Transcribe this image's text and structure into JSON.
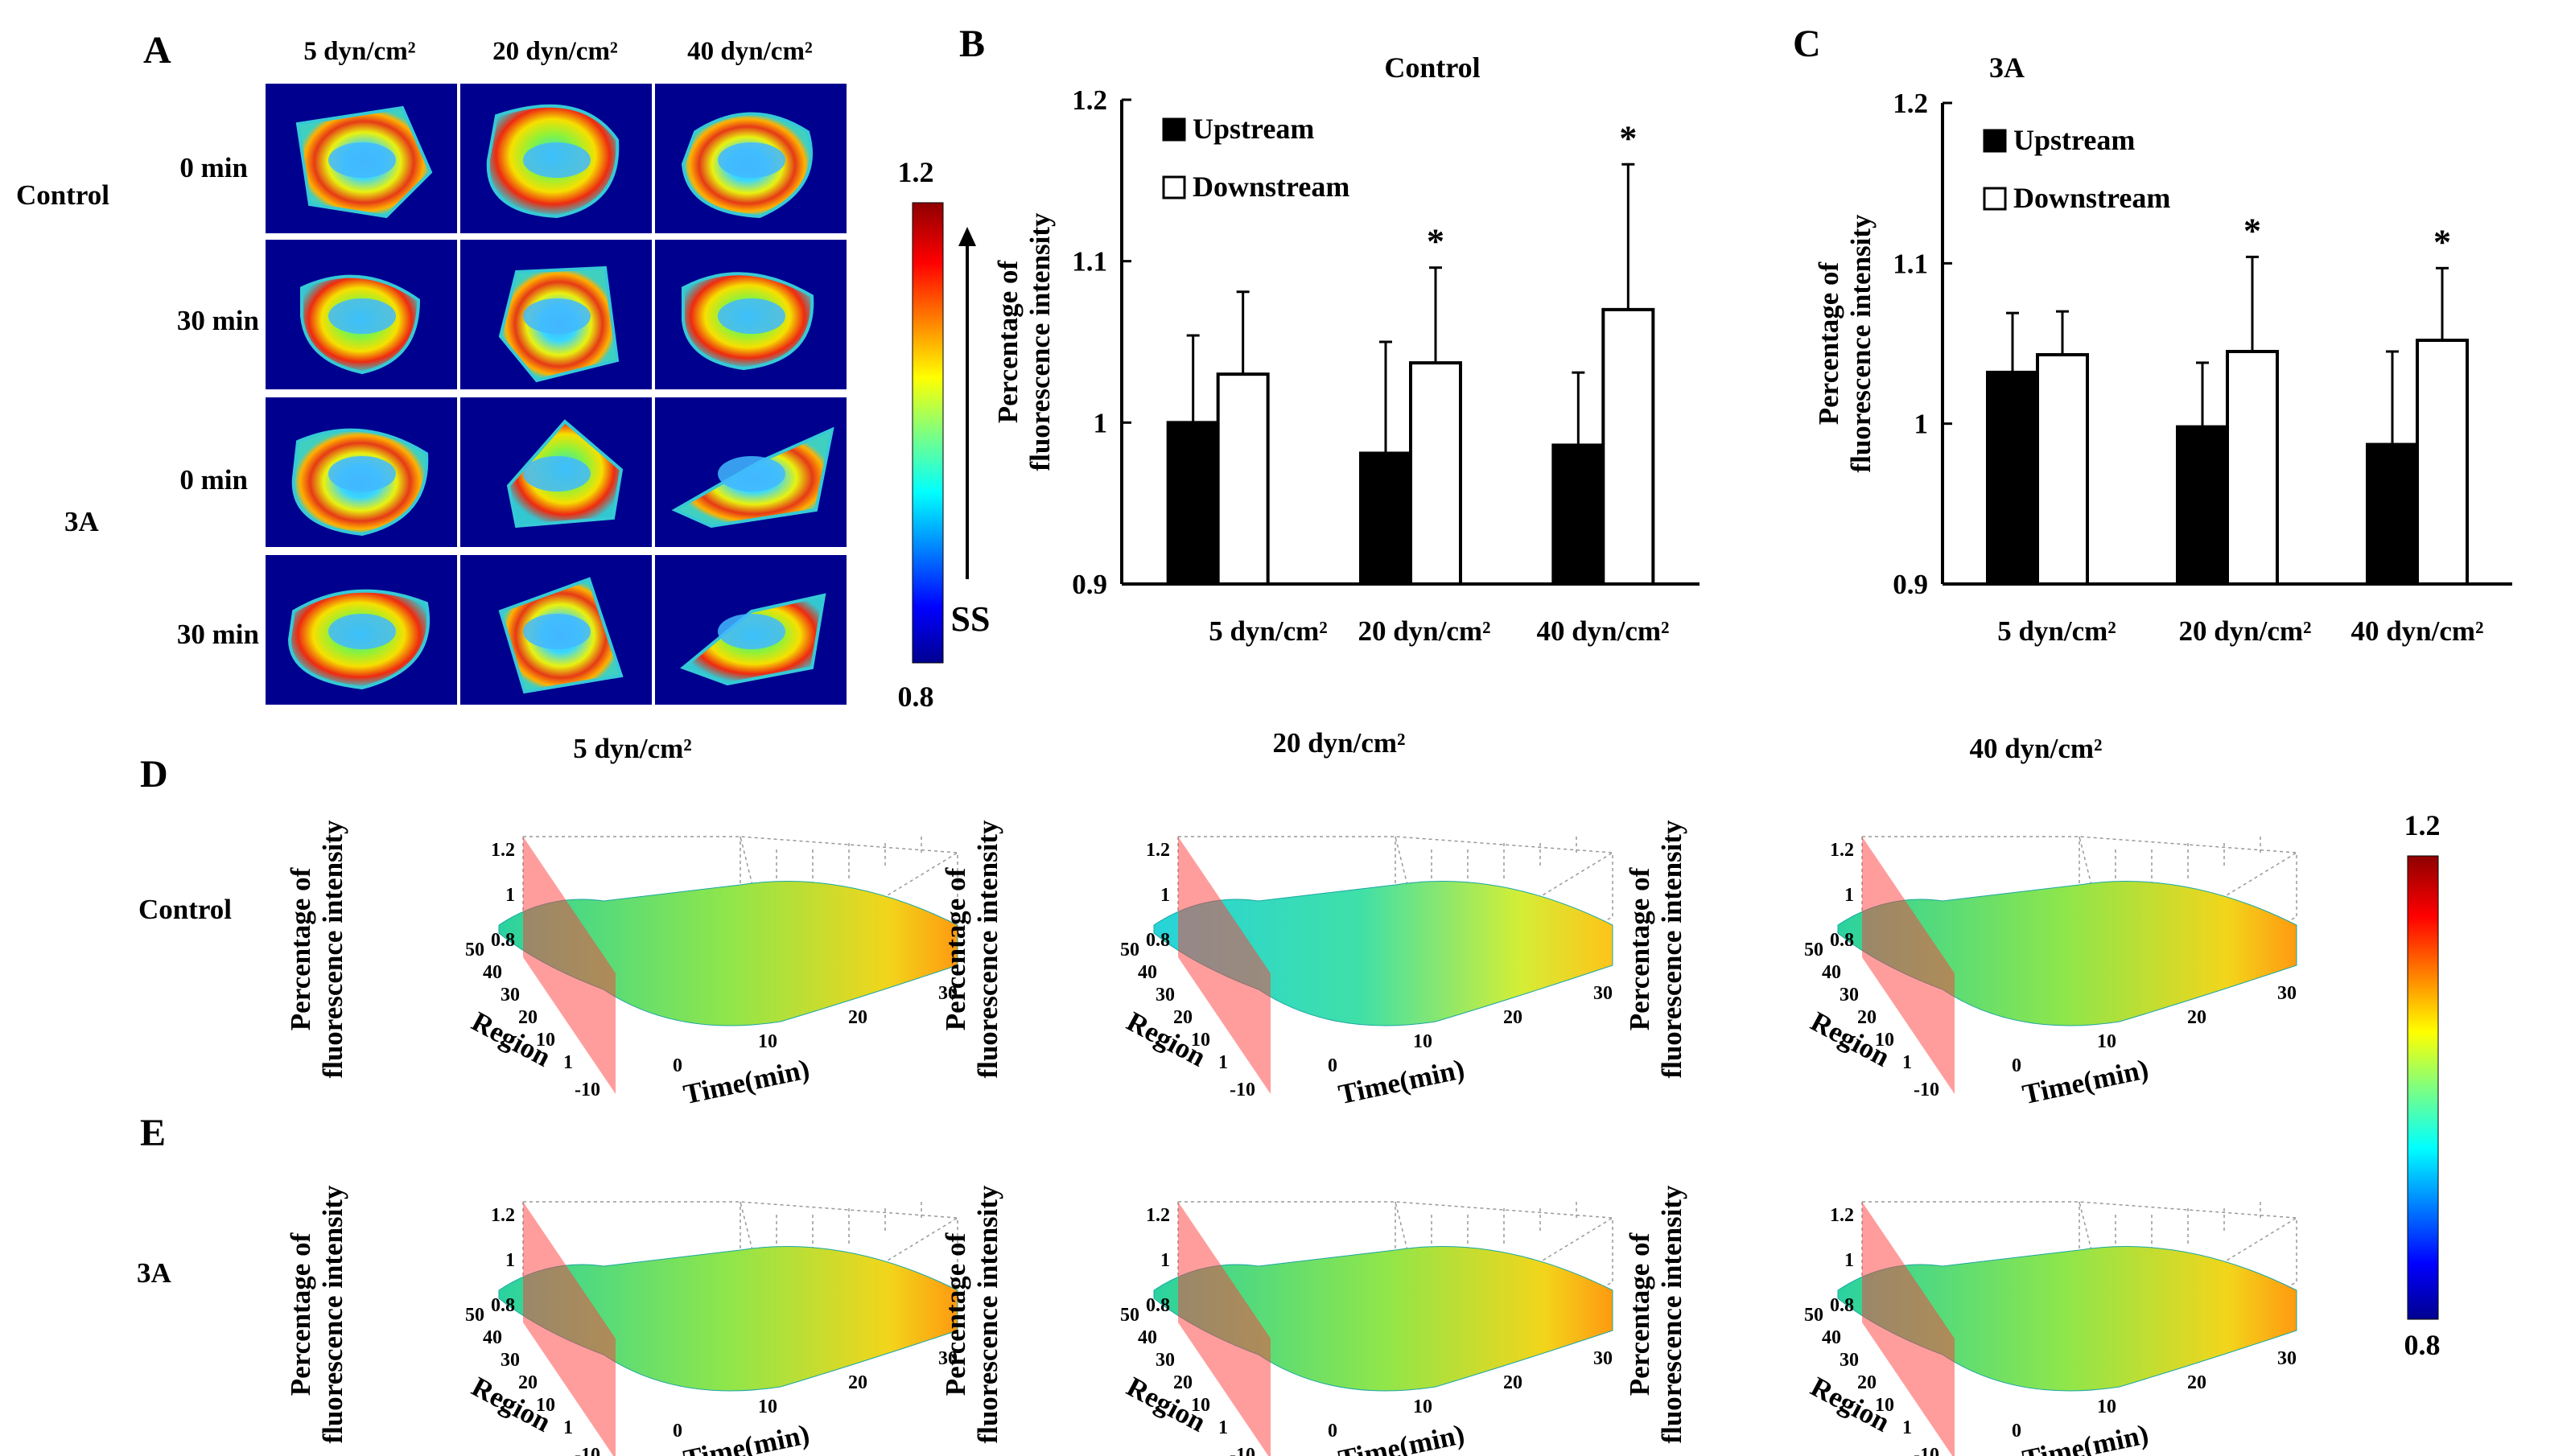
{
  "colors": {
    "background": "#ffffff",
    "jet_navy": "#00008f",
    "plane_red": "#ff3b3b",
    "bar_dark": "#000000",
    "bar_light": "#ffffff"
  },
  "colormap": {
    "low": "0.8",
    "high": "1.2",
    "arrow_label": "SS"
  },
  "panel_a": {
    "letter": "A",
    "columns": [
      "5 dyn/cm²",
      "20 dyn/cm²",
      "40 dyn/cm²"
    ],
    "groups": [
      "Control",
      "3A"
    ],
    "rows": [
      "0 min",
      "30 min",
      "0 min",
      "30 min"
    ]
  },
  "panel_b": {
    "letter": "B"
  },
  "panel_c": {
    "letter": "C"
  },
  "panel_d": {
    "letter": "D",
    "group": "Control"
  },
  "panel_e": {
    "letter": "E",
    "group": "3A"
  },
  "surface_plot": {
    "titles": [
      "5 dyn/cm²",
      "20 dyn/cm²",
      "40 dyn/cm²"
    ],
    "zlabel_line1": "Percentage of",
    "zlabel_line2": "fluorescence intensity",
    "xlabel": "Time(min)",
    "ylabel": "Region",
    "zticks": [
      "1.2",
      "1",
      "0.8"
    ],
    "yticks": [
      "50",
      "40",
      "30",
      "20",
      "10",
      "1"
    ],
    "xticks": [
      "-10",
      "0",
      "10",
      "20",
      "30"
    ]
  },
  "chart_data": [
    {
      "type": "bar",
      "title": "Control",
      "categories": [
        "5  dyn/cm²",
        "20 dyn/cm²",
        "40 dyn/cm²"
      ],
      "series": [
        {
          "name": "Upstream",
          "values": [
            1.0,
            0.981,
            0.986
          ],
          "errors": [
            0.054,
            0.069,
            0.045
          ]
        },
        {
          "name": "Downstream",
          "values": [
            1.03,
            1.037,
            1.07
          ],
          "errors": [
            0.051,
            0.059,
            0.09
          ]
        }
      ],
      "significance": [
        "",
        "*",
        "*"
      ],
      "ylabel_line1": "Percentage of",
      "ylabel_line2": "fluorescence intensity",
      "ylim": [
        0.9,
        1.2
      ],
      "yticks": [
        "0.9",
        "1",
        "1.1",
        "1.2"
      ],
      "legend_position": "top-left"
    },
    {
      "type": "bar",
      "title": "3A",
      "categories": [
        "5 dyn/cm²",
        "20 dyn/cm²",
        "40 dyn/cm²"
      ],
      "series": [
        {
          "name": "Upstream",
          "values": [
            1.032,
            0.998,
            0.987
          ],
          "errors": [
            0.037,
            0.04,
            0.058
          ]
        },
        {
          "name": "Downstream",
          "values": [
            1.043,
            1.045,
            1.052
          ],
          "errors": [
            0.027,
            0.059,
            0.045
          ]
        }
      ],
      "significance": [
        "",
        "*",
        "*"
      ],
      "ylabel_line1": "Percentage of",
      "ylabel_line2": "fluorescence intensity",
      "ylim": [
        0.9,
        1.2
      ],
      "yticks": [
        "0.9",
        "1",
        "1.1",
        "1.2"
      ],
      "legend_position": "top-left"
    }
  ]
}
